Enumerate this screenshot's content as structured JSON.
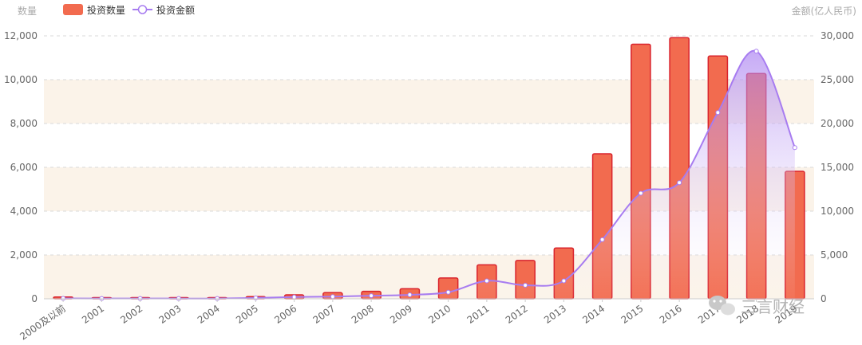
{
  "chart_data": {
    "type": "bar",
    "categories": [
      "2000及以前",
      "2001",
      "2002",
      "2003",
      "2004",
      "2005",
      "2006",
      "2007",
      "2008",
      "2009",
      "2010",
      "2011",
      "2012",
      "2013",
      "2014",
      "2015",
      "2016",
      "2017",
      "2018",
      "2019"
    ],
    "series": [
      {
        "name": "投资数量",
        "type": "bar",
        "axis": "left",
        "color": "#f26b4f",
        "border_color": "#d9232d",
        "values": [
          80,
          40,
          40,
          40,
          40,
          100,
          180,
          280,
          340,
          460,
          950,
          1550,
          1750,
          2320,
          6620,
          11620,
          11920,
          11080,
          10280,
          5820
        ]
      },
      {
        "name": "投资金额",
        "type": "line",
        "axis": "right",
        "smooth": true,
        "color": "#a77cf0",
        "area_gradient": [
          "#a77cf0",
          "#ffffff"
        ],
        "values": [
          50,
          30,
          30,
          30,
          30,
          100,
          200,
          250,
          350,
          450,
          750,
          2050,
          1550,
          2050,
          6750,
          12050,
          13250,
          21250,
          28250,
          17250
        ]
      }
    ],
    "y_left": {
      "name": "数量",
      "min": 0,
      "max": 12000,
      "ticks": [
        0,
        2000,
        4000,
        6000,
        8000,
        10000,
        12000
      ],
      "tick_labels": [
        "0",
        "2,000",
        "4,000",
        "6,000",
        "8,000",
        "10,000",
        "12,000"
      ]
    },
    "y_right": {
      "name": "金额(亿人民币)",
      "min": 0,
      "max": 30000,
      "ticks": [
        0,
        5000,
        10000,
        15000,
        20000,
        25000,
        30000
      ],
      "tick_labels": [
        "0",
        "5,000",
        "10,000",
        "15,000",
        "20,000",
        "25,000",
        "30,000"
      ]
    },
    "grid": true,
    "band_color": "#fbf3e9",
    "legend_position": "top-left"
  },
  "watermark": {
    "text": "三言财经",
    "icon": "wechat-icon"
  }
}
